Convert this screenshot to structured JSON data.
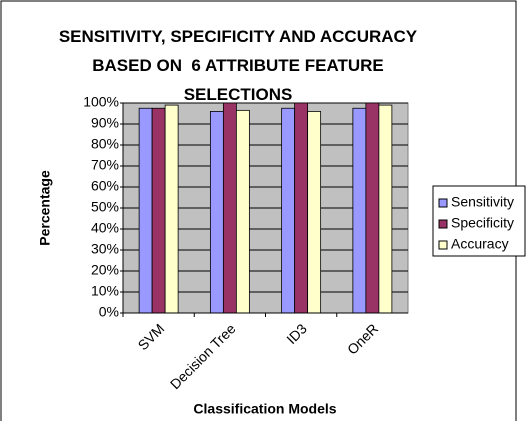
{
  "chart_data": {
    "type": "bar",
    "title": "SENSITIVITY, SPECIFICITY AND ACCURACY BASED ON  6 ATTRIBUTE FEATURE SELECTIONS",
    "x_label": "Classification Models",
    "y_label": "Percentage",
    "categories": [
      "SVM",
      "Decision Tree",
      "ID3",
      "OneR"
    ],
    "series": [
      {
        "name": "Sensitivity",
        "color": "#9999ff",
        "values": [
          97.5,
          96,
          97.5,
          97.5
        ]
      },
      {
        "name": "Specificity",
        "color": "#993366",
        "values": [
          97.5,
          100,
          100,
          100
        ]
      },
      {
        "name": "Accuracy",
        "color": "#ffffcc",
        "values": [
          99,
          96.5,
          96,
          99
        ]
      }
    ],
    "ylim": [
      0,
      100
    ],
    "yticks": [
      {
        "value": 0,
        "label": "0%"
      },
      {
        "value": 10,
        "label": "10%"
      },
      {
        "value": 20,
        "label": "20%"
      },
      {
        "value": 30,
        "label": "30%"
      },
      {
        "value": 40,
        "label": "40%"
      },
      {
        "value": 50,
        "label": "50%"
      },
      {
        "value": 60,
        "label": "60%"
      },
      {
        "value": 70,
        "label": "70%"
      },
      {
        "value": 80,
        "label": "80%"
      },
      {
        "value": 90,
        "label": "90%"
      },
      {
        "value": 100,
        "label": "100%"
      }
    ],
    "grid": true,
    "legend": "right"
  }
}
